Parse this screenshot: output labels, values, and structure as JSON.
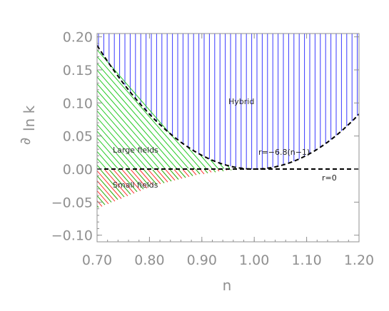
{
  "chart_data": {
    "type": "area",
    "xlabel": "n",
    "ylabel": "∂",
    "ylabel_sub": "ln k",
    "xlim": [
      0.7,
      1.2
    ],
    "ylim": [
      -0.11,
      0.205
    ],
    "x_ticks": [
      "0.70",
      "0.80",
      "0.90",
      "1.00",
      "1.10",
      "1.20"
    ],
    "y_ticks": [
      "0.20",
      "0.15",
      "0.10",
      "0.05",
      "0.00",
      "−0.05",
      "−0.10"
    ],
    "curves": [
      {
        "label": "r=−6.8(n−1)",
        "style": "dashed",
        "relation": "y = (n−1)^2 / (16/6.8 ... ) approx parabola",
        "vertex": [
          1.0,
          0.0
        ],
        "points": [
          [
            0.7,
            0.187
          ],
          [
            0.8,
            0.083
          ],
          [
            0.9,
            0.021
          ],
          [
            1.0,
            0.0
          ],
          [
            1.1,
            0.021
          ],
          [
            1.2,
            0.083
          ]
        ]
      },
      {
        "label": "r=0",
        "style": "dashed",
        "points": [
          [
            0.7,
            0.0
          ],
          [
            1.2,
            0.0
          ]
        ]
      }
    ],
    "regions": [
      {
        "label": "Hybrid",
        "color": "#3a3aff",
        "hatch": "vertical"
      },
      {
        "label": "Large fields",
        "color": "#22c922",
        "hatch": "diagonal"
      },
      {
        "label": "Small fields",
        "color": "#ff3030",
        "hatch": "diagonal"
      }
    ],
    "lower_boundary": [
      [
        0.7,
        -0.06
      ],
      [
        0.8,
        -0.028
      ],
      [
        0.9,
        -0.008
      ],
      [
        0.975,
        0.0
      ]
    ],
    "colors": {
      "axis": "#909090",
      "curve": "#000000"
    }
  }
}
